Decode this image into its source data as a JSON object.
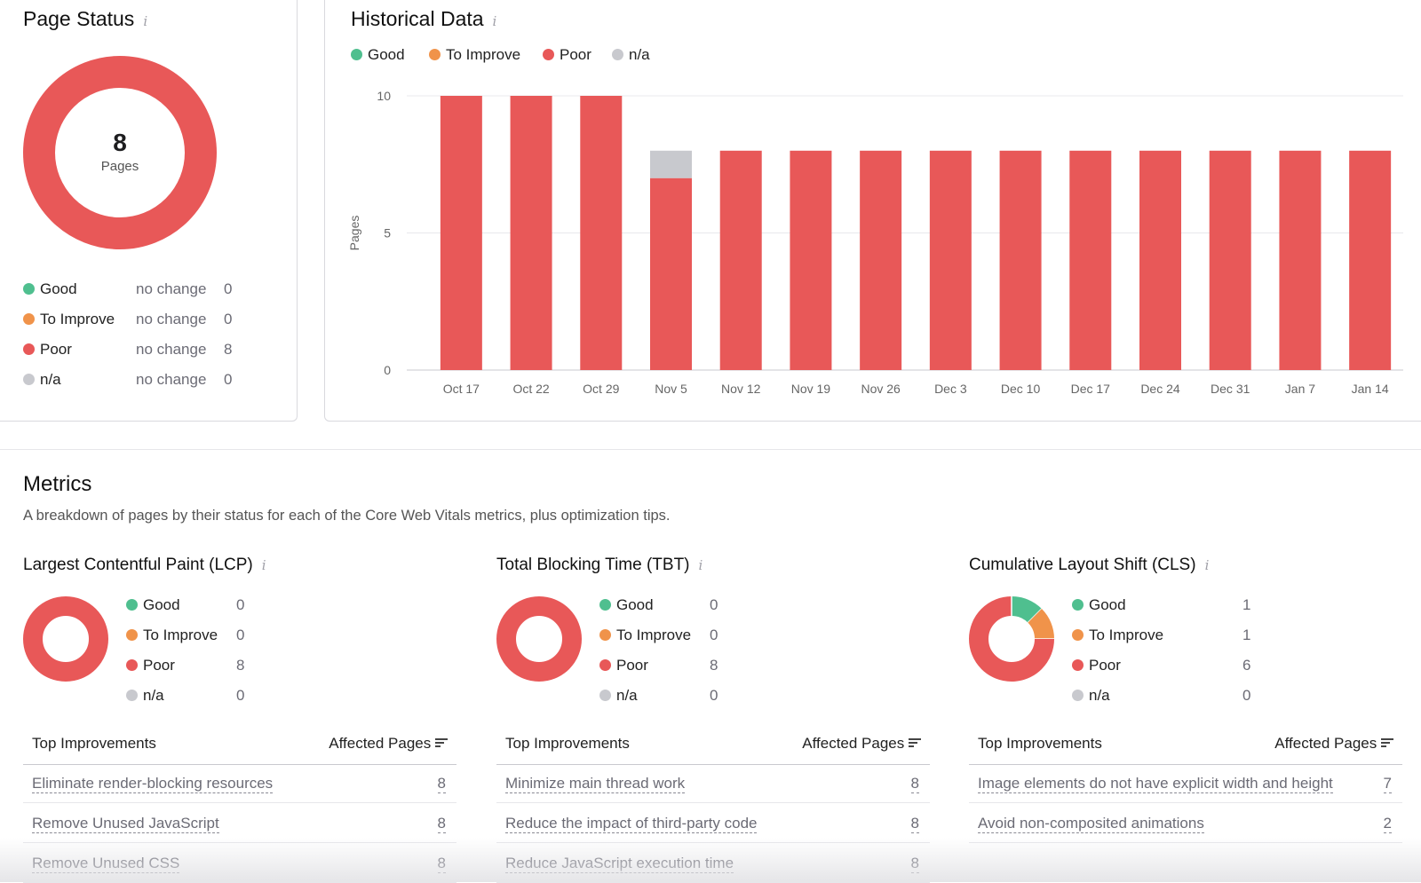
{
  "colors": {
    "good": "#4fbf8f",
    "to_improve": "#f0934a",
    "poor": "#e85858",
    "na": "#c8c9ce"
  },
  "page_status": {
    "title": "Page Status",
    "info_icon": "info-icon",
    "total": "8",
    "total_label": "Pages",
    "rows": [
      {
        "label": "Good",
        "change": "no change",
        "value": "0"
      },
      {
        "label": "To Improve",
        "change": "no change",
        "value": "0"
      },
      {
        "label": "Poor",
        "change": "no change",
        "value": "8"
      },
      {
        "label": "n/a",
        "change": "no change",
        "value": "0"
      }
    ]
  },
  "historical": {
    "title": "Historical Data",
    "legend": [
      "Good",
      "To Improve",
      "Poor",
      "n/a"
    ]
  },
  "chart_data": {
    "type": "bar",
    "stacked": true,
    "ylabel": "Pages",
    "ylim": [
      0,
      10
    ],
    "yticks": [
      "0",
      "5",
      "10"
    ],
    "grid": true,
    "legend": "top-left",
    "categories": [
      "Oct 17",
      "Oct 22",
      "Oct 29",
      "Nov 5",
      "Nov 12",
      "Nov 19",
      "Nov 26",
      "Dec 3",
      "Dec 10",
      "Dec 17",
      "Dec 24",
      "Dec 31",
      "Jan 7",
      "Jan 14"
    ],
    "series": [
      {
        "name": "Good",
        "values": [
          0,
          0,
          0,
          0,
          0,
          0,
          0,
          0,
          0,
          0,
          0,
          0,
          0,
          0
        ]
      },
      {
        "name": "To Improve",
        "values": [
          0,
          0,
          0,
          0,
          0,
          0,
          0,
          0,
          0,
          0,
          0,
          0,
          0,
          0
        ]
      },
      {
        "name": "Poor",
        "values": [
          10,
          10,
          10,
          7,
          8,
          8,
          8,
          8,
          8,
          8,
          8,
          8,
          8,
          8
        ]
      },
      {
        "name": "n/a",
        "values": [
          0,
          0,
          0,
          1,
          0,
          0,
          0,
          0,
          0,
          0,
          0,
          0,
          0,
          0
        ]
      }
    ]
  },
  "metrics": {
    "title": "Metrics",
    "description": "A breakdown of pages by their status for each of the Core Web Vitals metrics, plus optimization tips.",
    "table_header": "Top Improvements",
    "affected_header": "Affected Pages",
    "cards": [
      {
        "title": "Largest Contentful Paint (LCP)",
        "counts": [
          {
            "label": "Good",
            "value": "0"
          },
          {
            "label": "To Improve",
            "value": "0"
          },
          {
            "label": "Poor",
            "value": "8"
          },
          {
            "label": "n/a",
            "value": "0"
          }
        ],
        "improvements": [
          {
            "label": "Eliminate render-blocking resources",
            "pages": "8"
          },
          {
            "label": "Remove Unused JavaScript",
            "pages": "8"
          },
          {
            "label": "Remove Unused CSS",
            "pages": "8"
          }
        ]
      },
      {
        "title": "Total Blocking Time (TBT)",
        "counts": [
          {
            "label": "Good",
            "value": "0"
          },
          {
            "label": "To Improve",
            "value": "0"
          },
          {
            "label": "Poor",
            "value": "8"
          },
          {
            "label": "n/a",
            "value": "0"
          }
        ],
        "improvements": [
          {
            "label": "Minimize main thread work",
            "pages": "8"
          },
          {
            "label": "Reduce the impact of third-party code",
            "pages": "8"
          },
          {
            "label": "Reduce JavaScript execution time",
            "pages": "8"
          }
        ]
      },
      {
        "title": "Cumulative Layout Shift (CLS)",
        "counts": [
          {
            "label": "Good",
            "value": "1"
          },
          {
            "label": "To Improve",
            "value": "1"
          },
          {
            "label": "Poor",
            "value": "6"
          },
          {
            "label": "n/a",
            "value": "0"
          }
        ],
        "improvements": [
          {
            "label": "Image elements do not have explicit width and height",
            "pages": "7"
          },
          {
            "label": "Avoid non-composited animations",
            "pages": "2"
          }
        ]
      }
    ]
  }
}
